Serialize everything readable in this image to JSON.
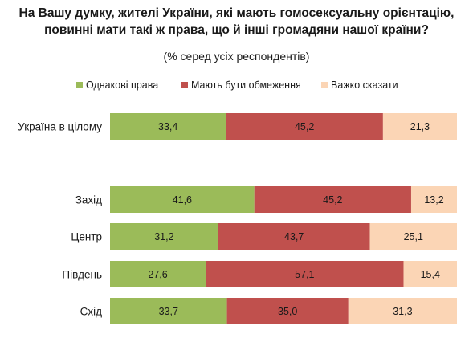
{
  "chart_data": {
    "type": "bar",
    "orientation": "horizontal",
    "stacked": true,
    "title_lines": [
      "На Вашу думку, жителі України, які мають гомосексуальну орієнтацію,",
      "повинні мати такі ж права, що й інші громадяни нашої країни?"
    ],
    "subtitle": "(% серед усіх респондентів)",
    "categories": [
      "Україна в цілому",
      "Захід",
      "Центр",
      "Південь",
      "Схід"
    ],
    "series": [
      {
        "name": "Однакові права",
        "color": "#9bbb59",
        "values": [
          33.4,
          41.6,
          31.2,
          27.6,
          33.7
        ],
        "labels": [
          "33,4",
          "41,6",
          "31,2",
          "27,6",
          "33,7"
        ]
      },
      {
        "name": "Мають бути обмеження",
        "color": "#c0504d",
        "values": [
          45.2,
          45.2,
          43.7,
          57.1,
          35.0
        ],
        "labels": [
          "45,2",
          "45,2",
          "43,7",
          "57,1",
          "35,0"
        ]
      },
      {
        "name": "Важко сказати",
        "color": "#fbd5b5",
        "values": [
          21.3,
          13.2,
          25.1,
          15.4,
          31.3
        ],
        "labels": [
          "21,3",
          "13,2",
          "25,1",
          "15,4",
          "31,3"
        ]
      }
    ],
    "xlim": [
      0,
      100
    ],
    "legend_position": "top",
    "grid": false
  }
}
